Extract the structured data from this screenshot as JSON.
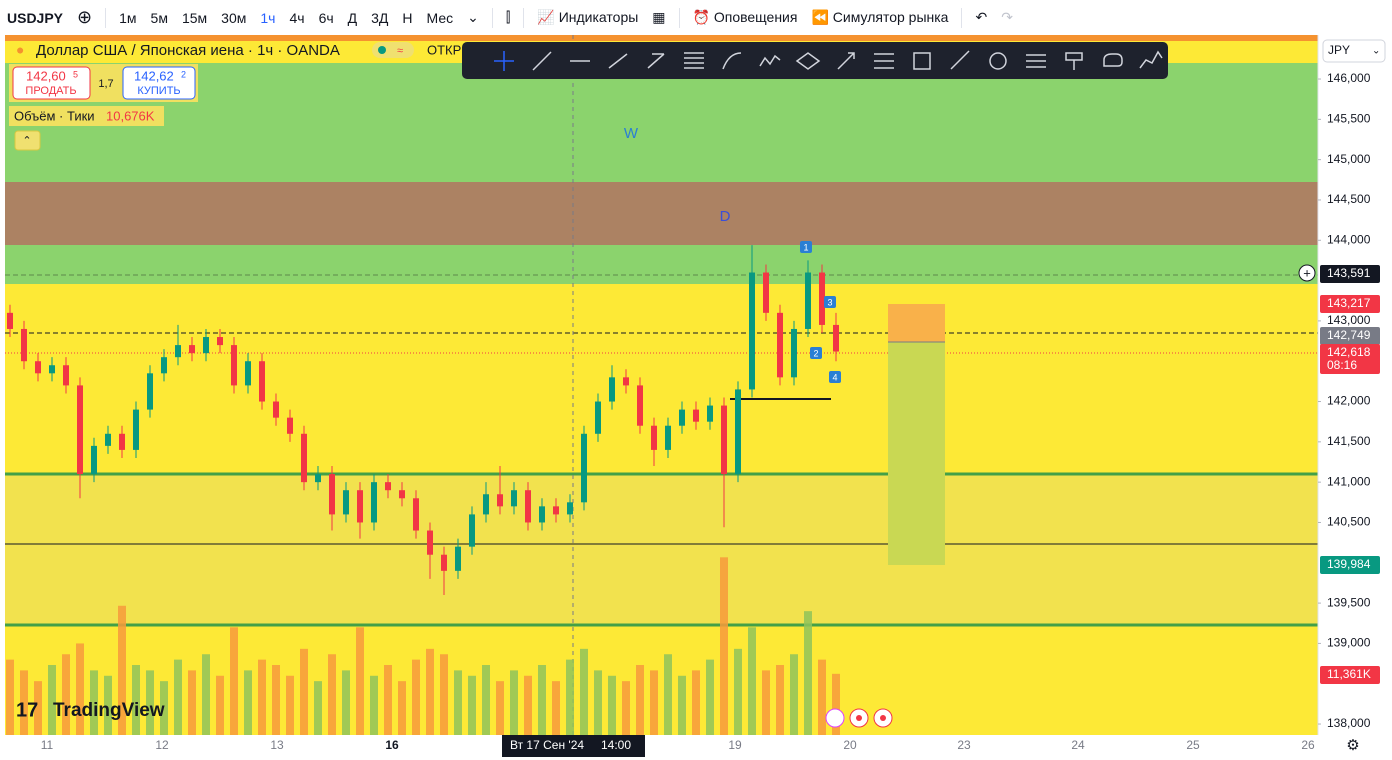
{
  "toolbar": {
    "symbol": "USDJPY",
    "intervals": [
      "1м",
      "5м",
      "15м",
      "30м",
      "1ч",
      "4ч",
      "6ч",
      "Д",
      "3Д",
      "Н",
      "Мес"
    ],
    "active_interval_index": 4,
    "indicators": "Индикаторы",
    "alerts": "Оповещения",
    "replay": "Симулятор рынка"
  },
  "legend": {
    "title": "Доллар США / Японская иена · 1ч · OANDA",
    "open_label": "ОТКР",
    "sell": {
      "main": "142,60",
      "pip": "5",
      "label": "ПРОДАТЬ"
    },
    "spread": "1,7",
    "buy": {
      "main": "142,62",
      "pip": "2",
      "label": "КУПИТЬ"
    },
    "volume_title": "Объём · Тики",
    "volume_value": "10,676K"
  },
  "annotations": {
    "w": "W",
    "d": "D",
    "points": [
      "1",
      "2",
      "3",
      "4"
    ]
  },
  "chart": {
    "ylim": [
      137.864,
      146.546
    ],
    "yticks": [
      {
        "value": 138,
        "label": "138,000"
      },
      {
        "value": 139,
        "label": "139,000"
      },
      {
        "value": 139.5,
        "label": "139,500"
      },
      {
        "value": 140.5,
        "label": "140,500"
      },
      {
        "value": 141,
        "label": "141,000"
      },
      {
        "value": 141.5,
        "label": "141,500"
      },
      {
        "value": 142,
        "label": "142,000"
      },
      {
        "value": 143,
        "label": "143,000"
      },
      {
        "value": 144,
        "label": "144,000"
      },
      {
        "value": 144.5,
        "label": "144,500"
      },
      {
        "value": 145,
        "label": "145,000"
      },
      {
        "value": 145.5,
        "label": "145,500"
      },
      {
        "value": 146,
        "label": "146,000"
      }
    ],
    "up_color": "#089981",
    "down_color": "#f23645",
    "candles": [
      [
        143.1,
        143.2,
        142.8,
        142.9
      ],
      [
        142.9,
        143.0,
        142.4,
        142.5
      ],
      [
        142.5,
        142.6,
        142.25,
        142.35
      ],
      [
        142.35,
        142.55,
        142.25,
        142.45
      ],
      [
        142.45,
        142.55,
        142.1,
        142.2
      ],
      [
        142.2,
        142.3,
        140.8,
        141.1
      ],
      [
        141.1,
        141.55,
        141.0,
        141.45
      ],
      [
        141.45,
        141.7,
        141.35,
        141.6
      ],
      [
        141.6,
        141.7,
        141.3,
        141.4
      ],
      [
        141.4,
        142.0,
        141.3,
        141.9
      ],
      [
        141.9,
        142.45,
        141.8,
        142.35
      ],
      [
        142.35,
        142.65,
        142.25,
        142.55
      ],
      [
        142.55,
        142.95,
        142.45,
        142.7
      ],
      [
        142.7,
        142.8,
        142.5,
        142.6
      ],
      [
        142.6,
        142.9,
        142.5,
        142.8
      ],
      [
        142.8,
        142.9,
        142.6,
        142.7
      ],
      [
        142.7,
        142.8,
        142.1,
        142.2
      ],
      [
        142.2,
        142.6,
        142.1,
        142.5
      ],
      [
        142.5,
        142.6,
        141.9,
        142.0
      ],
      [
        142.0,
        142.1,
        141.7,
        141.8
      ],
      [
        141.8,
        141.9,
        141.5,
        141.6
      ],
      [
        141.6,
        141.7,
        140.9,
        141.0
      ],
      [
        141.0,
        141.2,
        140.9,
        141.1
      ],
      [
        141.1,
        141.2,
        140.4,
        140.6
      ],
      [
        140.6,
        141.0,
        140.5,
        140.9
      ],
      [
        140.9,
        141.0,
        140.3,
        140.5
      ],
      [
        140.5,
        141.1,
        140.4,
        141.0
      ],
      [
        141.0,
        141.1,
        140.8,
        140.9
      ],
      [
        140.9,
        141.0,
        140.7,
        140.8
      ],
      [
        140.8,
        140.9,
        140.3,
        140.4
      ],
      [
        140.4,
        140.5,
        139.8,
        140.1
      ],
      [
        140.1,
        140.2,
        139.6,
        139.9
      ],
      [
        139.9,
        140.3,
        139.8,
        140.2
      ],
      [
        140.2,
        140.7,
        140.1,
        140.6
      ],
      [
        140.6,
        141.0,
        140.5,
        140.85
      ],
      [
        140.85,
        141.2,
        140.6,
        140.7
      ],
      [
        140.7,
        141.0,
        140.6,
        140.9
      ],
      [
        140.9,
        141.0,
        140.4,
        140.5
      ],
      [
        140.5,
        140.8,
        140.4,
        140.7
      ],
      [
        140.7,
        140.8,
        140.5,
        140.6
      ],
      [
        140.6,
        140.85,
        140.5,
        140.75
      ],
      [
        140.75,
        141.7,
        140.65,
        141.6
      ],
      [
        141.6,
        142.1,
        141.5,
        142.0
      ],
      [
        142.0,
        142.45,
        141.9,
        142.3
      ],
      [
        142.3,
        142.4,
        142.1,
        142.2
      ],
      [
        142.2,
        142.3,
        141.6,
        141.7
      ],
      [
        141.7,
        141.8,
        141.2,
        141.4
      ],
      [
        141.4,
        141.8,
        141.3,
        141.7
      ],
      [
        141.7,
        142.0,
        141.6,
        141.9
      ],
      [
        141.9,
        142.0,
        141.65,
        141.75
      ],
      [
        141.75,
        142.05,
        141.65,
        141.95
      ],
      [
        141.95,
        142.05,
        140.44,
        141.1
      ],
      [
        141.1,
        142.25,
        141.0,
        142.15
      ],
      [
        142.15,
        143.94,
        142.05,
        143.6
      ],
      [
        143.6,
        143.7,
        143.0,
        143.1
      ],
      [
        143.1,
        143.2,
        142.2,
        142.3
      ],
      [
        142.3,
        143.0,
        142.2,
        142.9
      ],
      [
        142.9,
        143.75,
        142.8,
        143.6
      ],
      [
        143.6,
        143.7,
        142.85,
        142.95
      ],
      [
        142.95,
        143.1,
        142.5,
        142.62
      ]
    ],
    "vlim": [
      0,
      130
    ],
    "volumes": [
      14,
      12,
      10,
      13,
      15,
      17,
      12,
      11,
      24,
      13,
      12,
      10,
      14,
      12,
      15,
      11,
      20,
      12,
      14,
      13,
      11,
      16,
      10,
      15,
      12,
      20,
      11,
      13,
      10,
      14,
      16,
      15,
      12,
      11,
      13,
      10,
      12,
      11,
      13,
      10,
      14,
      16,
      12,
      11,
      10,
      13,
      12,
      15,
      11,
      12,
      14,
      33,
      16,
      20,
      12,
      13,
      15,
      23,
      14,
      11.361
    ]
  },
  "price_labels": [
    {
      "text": "143,591",
      "color": "#131722"
    },
    {
      "text": "143,217",
      "color": "#f23645"
    },
    {
      "text": "142,749",
      "color": "#787b86"
    },
    {
      "text": "142,618",
      "sub": "08:16",
      "color": "#f23645"
    },
    {
      "text": "139,984",
      "color": "#089981"
    },
    {
      "text": "11,361K",
      "color": "#f23645"
    }
  ],
  "currency": "JPY",
  "time_axis": {
    "labels": [
      "11",
      "12",
      "13",
      "16",
      "19",
      "20",
      "23",
      "24",
      "25",
      "26"
    ],
    "crosshair_date": "Вт 17 Сен '24",
    "crosshair_time": "14:00"
  },
  "logo": "TradingView"
}
